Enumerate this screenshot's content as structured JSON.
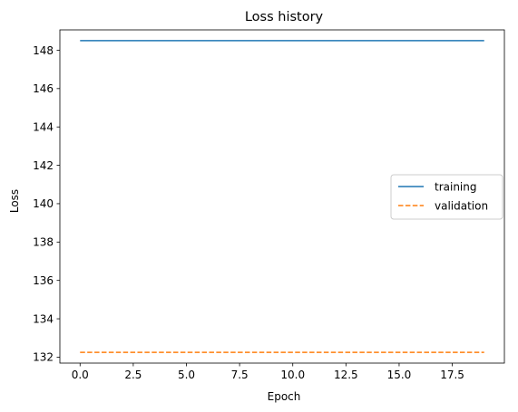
{
  "chart_data": {
    "type": "line",
    "title": "Loss history",
    "xlabel": "Epoch",
    "ylabel": "Loss",
    "xlim": [
      -0.95,
      19.95
    ],
    "ylim": [
      131.69,
      149.06
    ],
    "xticks": [
      0.0,
      2.5,
      5.0,
      7.5,
      10.0,
      12.5,
      15.0,
      17.5
    ],
    "xtick_labels": [
      "0.0",
      "2.5",
      "5.0",
      "7.5",
      "10.0",
      "12.5",
      "15.0",
      "17.5"
    ],
    "yticks": [
      132,
      134,
      136,
      138,
      140,
      142,
      144,
      146,
      148
    ],
    "ytick_labels": [
      "132",
      "134",
      "136",
      "138",
      "140",
      "142",
      "144",
      "146",
      "148"
    ],
    "grid": false,
    "legend_position": "center-right",
    "x": [
      0,
      1,
      2,
      3,
      4,
      5,
      6,
      7,
      8,
      9,
      10,
      11,
      12,
      13,
      14,
      15,
      16,
      17,
      18,
      19
    ],
    "series": [
      {
        "name": "training",
        "color": "#1f77b4",
        "style": "solid",
        "values": [
          148.5,
          148.5,
          148.5,
          148.5,
          148.5,
          148.5,
          148.5,
          148.5,
          148.5,
          148.5,
          148.5,
          148.5,
          148.5,
          148.5,
          148.5,
          148.5,
          148.5,
          148.5,
          148.5,
          148.5
        ]
      },
      {
        "name": "validation",
        "color": "#ff7f0e",
        "style": "dashed",
        "values": [
          132.25,
          132.25,
          132.25,
          132.25,
          132.25,
          132.25,
          132.25,
          132.25,
          132.25,
          132.25,
          132.25,
          132.25,
          132.25,
          132.25,
          132.25,
          132.25,
          132.25,
          132.25,
          132.25,
          132.25
        ]
      }
    ]
  }
}
